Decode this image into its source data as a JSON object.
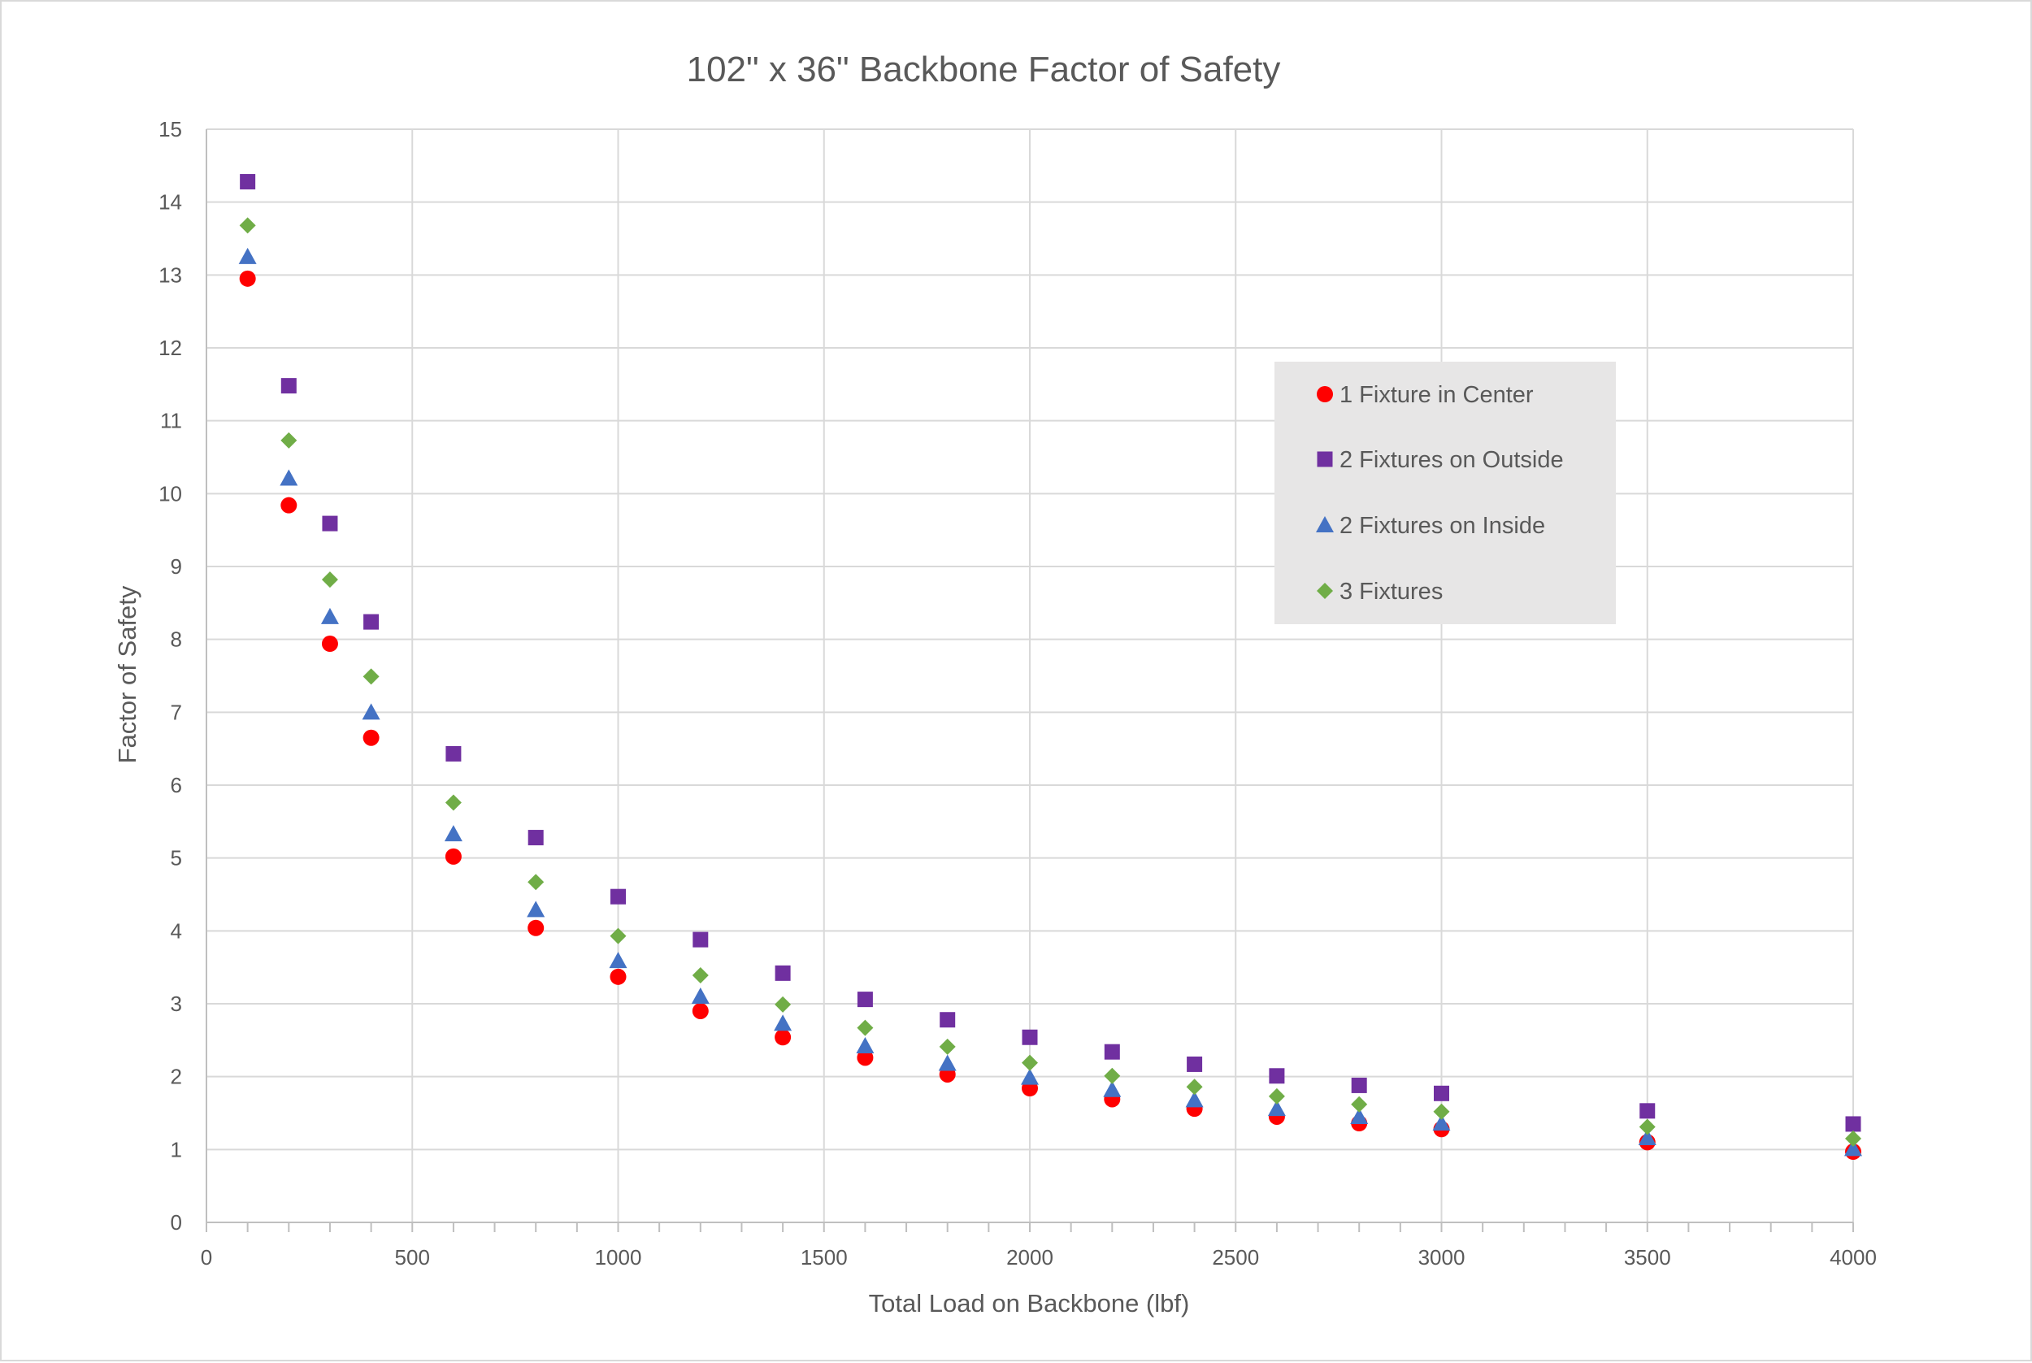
{
  "chart_data": {
    "type": "scatter",
    "title": "102\" x 36\" Backbone Factor of Safety",
    "xlabel": "Total Load on Backbone (lbf)",
    "ylabel": "Factor of Safety",
    "xlim": [
      0,
      4000
    ],
    "ylim": [
      0,
      15
    ],
    "xticks": [
      0,
      500,
      1000,
      1500,
      2000,
      2500,
      3000,
      3500,
      4000
    ],
    "yticks": [
      0,
      1,
      2,
      3,
      4,
      5,
      6,
      7,
      8,
      9,
      10,
      11,
      12,
      13,
      14,
      15
    ],
    "grid": true,
    "legend_position": "right",
    "x": [
      100,
      200,
      300,
      400,
      600,
      800,
      1000,
      1200,
      1400,
      1600,
      1800,
      2000,
      2200,
      2400,
      2600,
      2800,
      3000,
      3500,
      4000
    ],
    "series": [
      {
        "name": "1 Fixture in Center",
        "marker": "circle",
        "color": "#ff0000",
        "values": [
          12.95,
          9.84,
          7.94,
          6.65,
          5.02,
          4.04,
          3.37,
          2.9,
          2.54,
          2.26,
          2.03,
          1.84,
          1.69,
          1.56,
          1.45,
          1.36,
          1.28,
          1.1,
          0.97
        ]
      },
      {
        "name": "2 Fixtures on Outside",
        "marker": "square",
        "color": "#7030a0",
        "values": [
          14.28,
          11.48,
          9.59,
          8.24,
          6.43,
          5.28,
          4.47,
          3.88,
          3.42,
          3.06,
          2.78,
          2.54,
          2.34,
          2.17,
          2.01,
          1.88,
          1.77,
          1.53,
          1.35
        ]
      },
      {
        "name": "2 Fixtures on Inside",
        "marker": "triangle",
        "color": "#4472c4",
        "values": [
          13.25,
          10.21,
          8.31,
          7.0,
          5.33,
          4.29,
          3.59,
          3.1,
          2.73,
          2.42,
          2.18,
          1.99,
          1.82,
          1.68,
          1.56,
          1.45,
          1.36,
          1.16,
          1.01
        ]
      },
      {
        "name": "3 Fixtures",
        "marker": "diamond",
        "color": "#70ad47",
        "values": [
          13.68,
          10.73,
          8.82,
          7.49,
          5.76,
          4.67,
          3.93,
          3.39,
          2.99,
          2.67,
          2.41,
          2.19,
          2.01,
          1.86,
          1.73,
          1.62,
          1.52,
          1.31,
          1.15
        ]
      }
    ]
  }
}
